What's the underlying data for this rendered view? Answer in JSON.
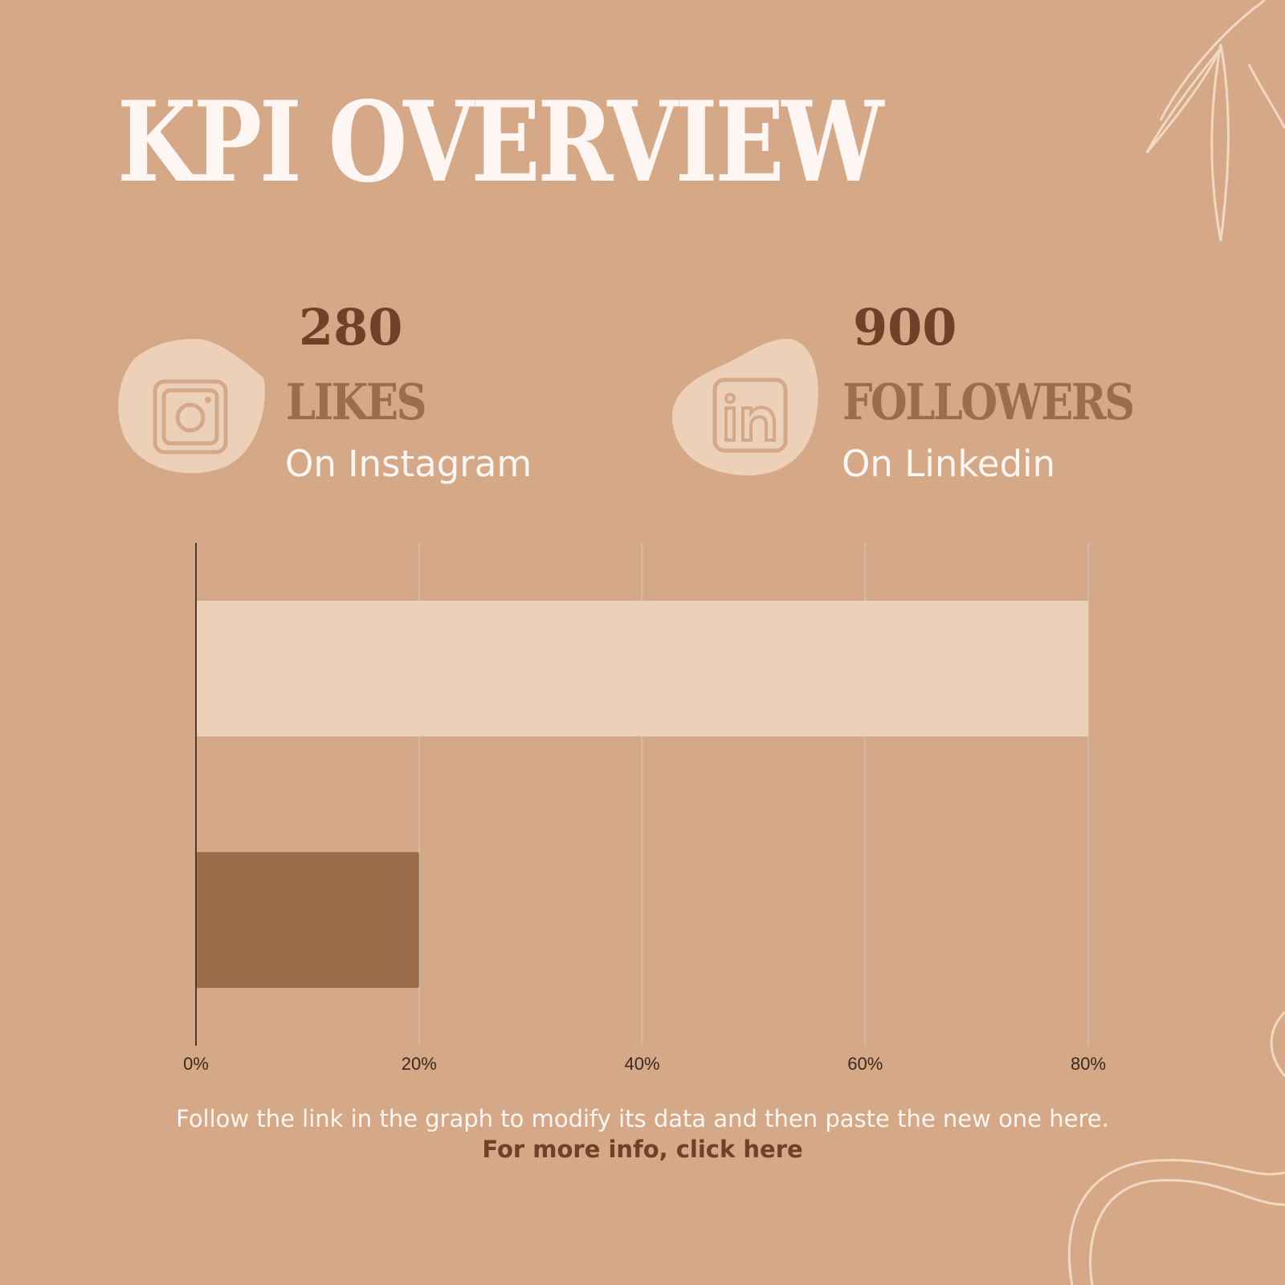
{
  "page": {
    "title": "KPI OVERVIEW",
    "background": "#d5a887"
  },
  "kpis": [
    {
      "value": "280",
      "label": "LIKES",
      "sub": "On Instagram",
      "icon": "instagram-icon"
    },
    {
      "value": "900",
      "label": "FOLLOWERS",
      "sub": "On Linkedin",
      "icon": "linkedin-icon"
    }
  ],
  "chart_data": {
    "type": "bar",
    "orientation": "horizontal",
    "categories": [
      "",
      ""
    ],
    "values": [
      80,
      20
    ],
    "colors": [
      "#ecd0b8",
      "#9c6d4a"
    ],
    "xlim": [
      0,
      80
    ],
    "xticks": [
      "0%",
      "20%",
      "40%",
      "60%",
      "80%"
    ],
    "grid": true,
    "title": "",
    "xlabel": "",
    "ylabel": ""
  },
  "footer": {
    "text": "Follow the link in the graph to modify its data and then paste the new one here.",
    "link": "For more info, click here"
  }
}
